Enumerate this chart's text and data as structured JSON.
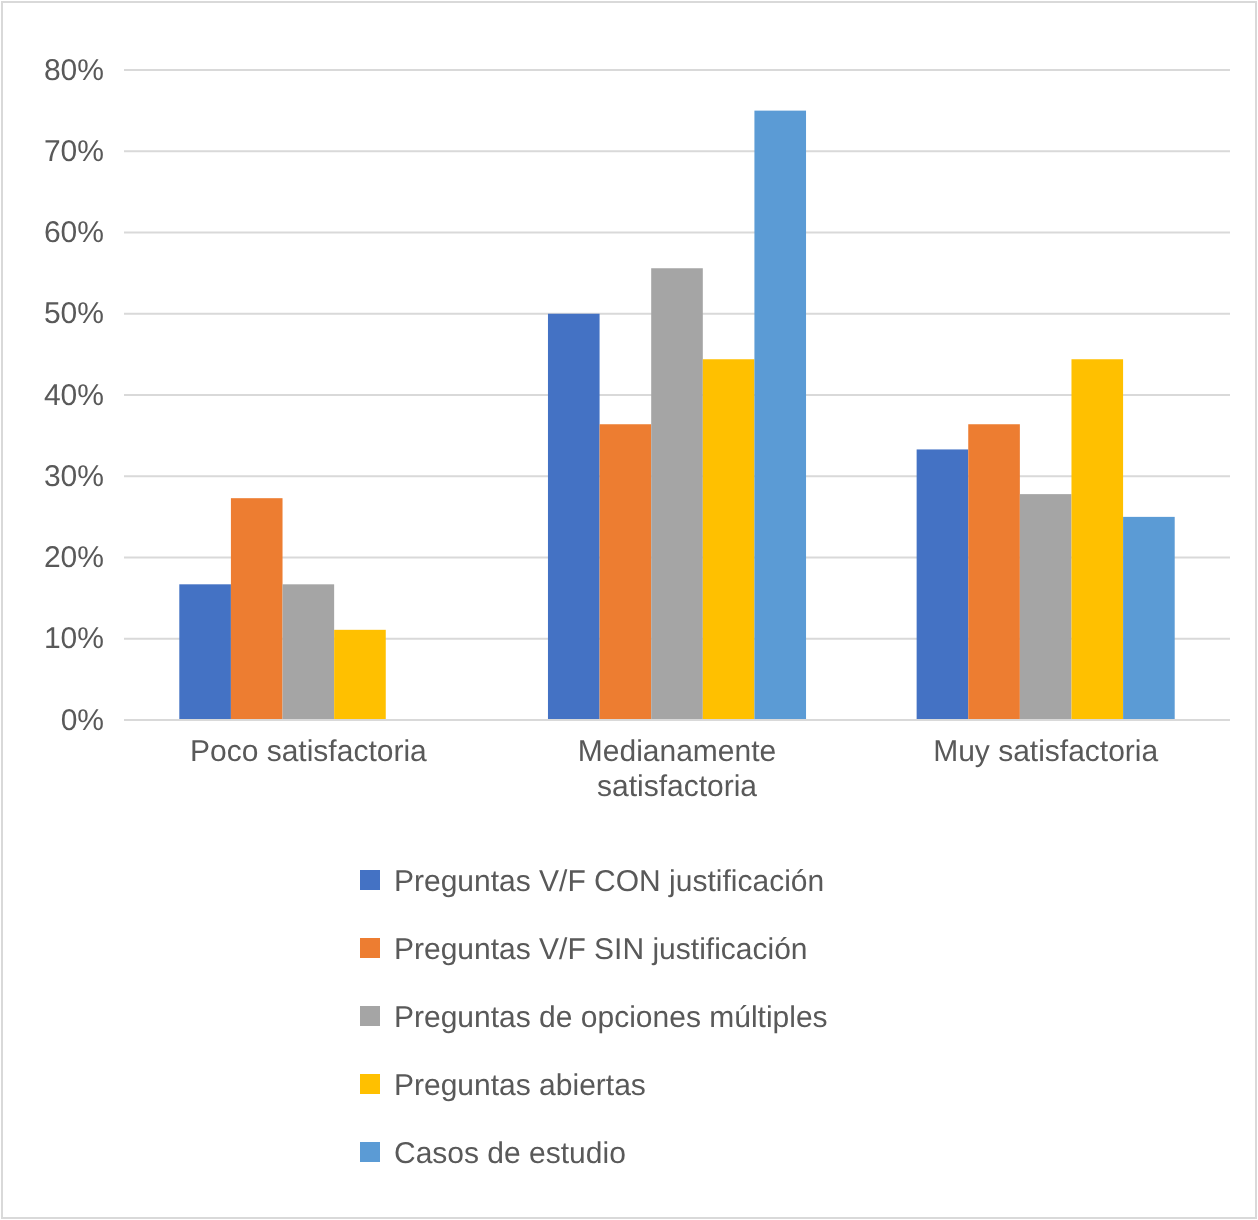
{
  "chart_data": {
    "type": "bar",
    "categories": [
      "Poco satisfactoria",
      "Medianamente satisfactoria",
      "Muy satisfactoria"
    ],
    "series": [
      {
        "name": "Preguntas V/F CON justificación",
        "color": "#4472c4",
        "values": [
          16.7,
          50,
          33.3
        ]
      },
      {
        "name": "Preguntas V/F SIN justificación",
        "color": "#ed7d31",
        "values": [
          27.3,
          36.4,
          36.4
        ]
      },
      {
        "name": "Preguntas de opciones múltiples",
        "color": "#a5a5a5",
        "values": [
          16.7,
          55.6,
          27.8
        ]
      },
      {
        "name": "Preguntas abiertas",
        "color": "#ffc000",
        "values": [
          11.1,
          44.4,
          44.4
        ]
      },
      {
        "name": "Casos de estudio",
        "color": "#5b9bd5",
        "values": [
          0,
          75,
          25
        ]
      }
    ],
    "ylim": [
      0,
      80
    ],
    "yticks": [
      {
        "value": 0,
        "label": "0%"
      },
      {
        "value": 10,
        "label": "10%"
      },
      {
        "value": 20,
        "label": "20%"
      },
      {
        "value": 30,
        "label": "30%"
      },
      {
        "value": 40,
        "label": "40%"
      },
      {
        "value": 50,
        "label": "50%"
      },
      {
        "value": 60,
        "label": "60%"
      },
      {
        "value": 70,
        "label": "70%"
      },
      {
        "value": 80,
        "label": "80%"
      }
    ],
    "grid": "y",
    "legend": "bottom"
  }
}
